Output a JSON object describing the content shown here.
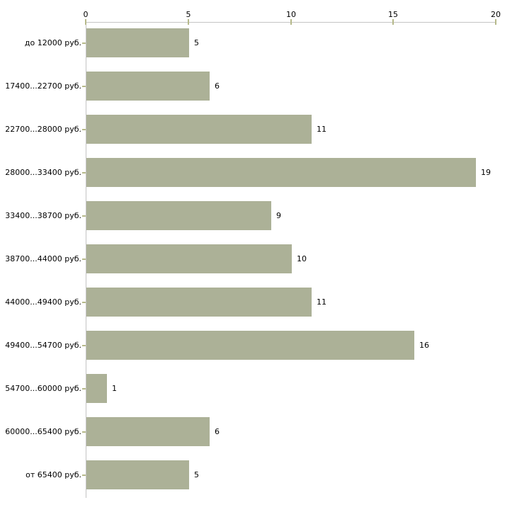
{
  "chart_data": {
    "type": "bar",
    "orientation": "horizontal",
    "title": "",
    "xlabel": "",
    "ylabel": "",
    "categories": [
      "до 12000 руб.",
      "17400...22700 руб.",
      "22700...28000 руб.",
      "28000...33400 руб.",
      "33400...38700 руб.",
      "38700...44000 руб.",
      "44000...49400 руб.",
      "49400...54700 руб.",
      "54700...60000 руб.",
      "60000...65400 руб.",
      "от 65400 руб."
    ],
    "values": [
      5,
      6,
      11,
      19,
      9,
      10,
      11,
      16,
      1,
      6,
      5
    ],
    "x_ticks": [
      0,
      5,
      10,
      15,
      20
    ],
    "xlim": [
      0,
      20
    ],
    "value_labels_position": "right-of-bar",
    "axis_position": "top",
    "grid": "off",
    "legend": "none",
    "colors": {
      "bar": "#acb197",
      "tick": "#b6b98a",
      "axis_line": "#c4c4c4",
      "text": "#000000",
      "background": "#ffffff"
    }
  }
}
